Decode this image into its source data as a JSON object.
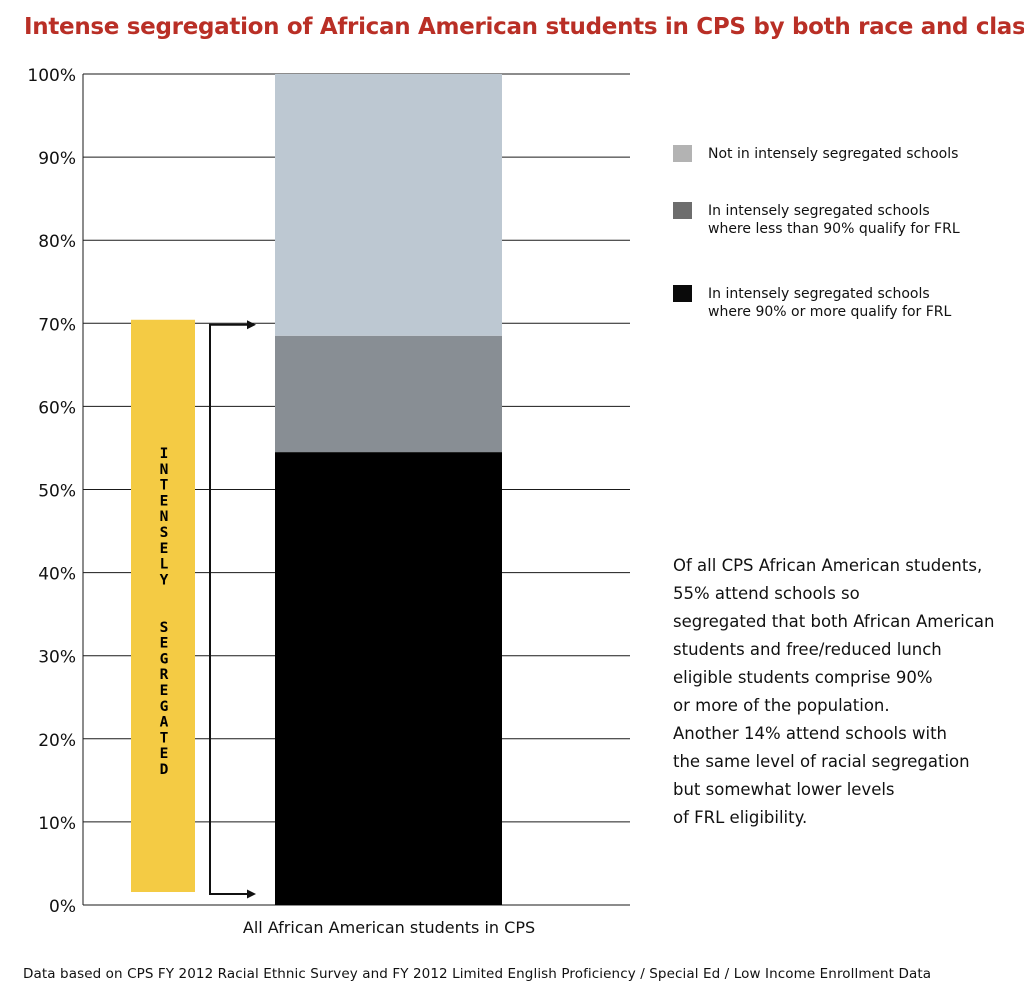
{
  "title": "Intense segregation of African American students in CPS by both race and class",
  "source_note": "Data based on CPS FY 2012 Racial Ethnic Survey and FY 2012 Limited English Proficiency / Special Ed / Low Income Enrollment Data",
  "annotation": "Of all CPS African American students,\n55% attend schools so\nsegregated that both African American\nstudents and free/reduced lunch\neligible students comprise 90%\nor more of the population.\nAnother 14% attend schools with\nthe same level of racial segregation\nbut somewhat lower levels\nof FRL eligibility.",
  "legend": [
    {
      "label": "Not in intensely segregated schools",
      "color": "#b3b3b3"
    },
    {
      "label": "In intensely segregated schools\nwhere less than 90% qualify for FRL",
      "color": "#6d6d6d"
    },
    {
      "label": "In intensely segregated schools\nwhere 90% or more qualify for FRL",
      "color": "#0a0a0a"
    }
  ],
  "bracket_label": "INTENSELY SEGREGATED",
  "colors": {
    "title": "#b92f26",
    "bracket": "#f4cb44"
  },
  "chart_data": {
    "type": "bar",
    "stacked": true,
    "categories": [
      "All African American students in CPS"
    ],
    "series": [
      {
        "name": "In intensely segregated schools where 90% or more qualify for FRL",
        "values": [
          54.5
        ],
        "color": "#000000"
      },
      {
        "name": "In intensely segregated schools where less than 90% qualify for FRL",
        "values": [
          14
        ],
        "color": "#888e94"
      },
      {
        "name": "Not in intensely segregated schools",
        "values": [
          31.5
        ],
        "color": "#bdc8d2"
      }
    ],
    "y_ticks": [
      "0%",
      "10%",
      "20%",
      "30%",
      "40%",
      "50%",
      "60%",
      "70%",
      "80%",
      "90%",
      "100%"
    ],
    "ylim": [
      0,
      100
    ],
    "grid": true,
    "legend_position": "right",
    "bracket_range": [
      0,
      68.5
    ]
  }
}
